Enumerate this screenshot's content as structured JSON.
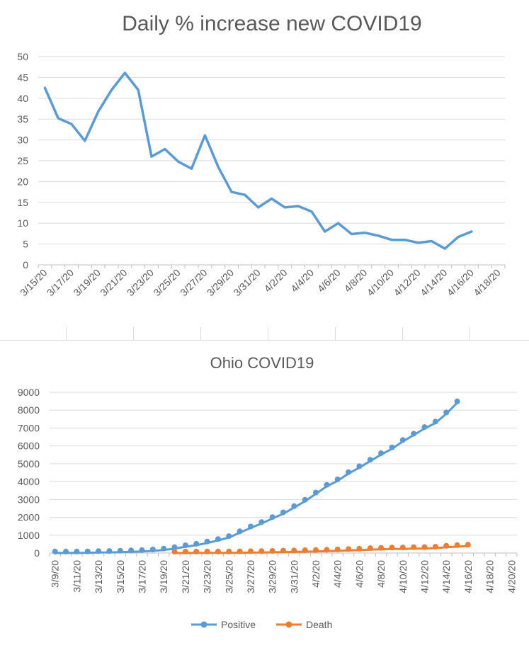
{
  "chart_data": [
    {
      "type": "line",
      "title": "Daily % increase new COVID19",
      "xlabel": "",
      "ylabel": "",
      "ylim": [
        0,
        50
      ],
      "yticks": [
        "0",
        "5",
        "10",
        "15",
        "20",
        "25",
        "30",
        "35",
        "40",
        "45",
        "50"
      ],
      "xticks": [
        "3/15/20",
        "3/17/20",
        "3/19/20",
        "3/21/20",
        "3/23/20",
        "3/25/20",
        "3/27/20",
        "3/29/20",
        "3/31/20",
        "4/2/20",
        "4/4/20",
        "4/6/20",
        "4/8/20",
        "4/10/20",
        "4/12/20",
        "4/14/20",
        "4/16/20",
        "4/18/20"
      ],
      "x_start": "3/15/20",
      "grid": true,
      "series": [
        {
          "color": "#5b9bd5",
          "x": [
            "3/15/20",
            "3/16/20",
            "3/17/20",
            "3/18/20",
            "3/19/20",
            "3/20/20",
            "3/21/20",
            "3/22/20",
            "3/23/20",
            "3/24/20",
            "3/25/20",
            "3/26/20",
            "3/27/20",
            "3/28/20",
            "3/29/20",
            "3/30/20",
            "3/31/20",
            "4/1/20",
            "4/2/20",
            "4/3/20",
            "4/4/20",
            "4/5/20",
            "4/6/20",
            "4/7/20",
            "4/8/20",
            "4/9/20",
            "4/10/20",
            "4/11/20",
            "4/12/20",
            "4/13/20",
            "4/14/20",
            "4/15/20",
            "4/16/20"
          ],
          "values": [
            42.5,
            35.2,
            33.8,
            29.8,
            36.8,
            42,
            46.1,
            42,
            26,
            27.8,
            24.8,
            23.1,
            31.1,
            23.5,
            17.5,
            16.8,
            13.8,
            15.9,
            13.8,
            14.1,
            12.8,
            8,
            10,
            7.4,
            7.7,
            7,
            6,
            6,
            5.3,
            5.7,
            3.9,
            6.7,
            8
          ]
        }
      ]
    },
    {
      "type": "line",
      "title": "Ohio COVID19",
      "xlabel": "",
      "ylabel": "",
      "ylim": [
        0,
        9000
      ],
      "yticks": [
        "0",
        "1000",
        "2000",
        "3000",
        "4000",
        "5000",
        "6000",
        "7000",
        "8000",
        "9000"
      ],
      "xticks": [
        "3/9/20",
        "3/11/20",
        "3/13/20",
        "3/15/20",
        "3/17/20",
        "3/19/20",
        "3/21/20",
        "3/23/20",
        "3/25/20",
        "3/27/20",
        "3/29/20",
        "3/31/20",
        "4/2/20",
        "4/4/20",
        "4/6/20",
        "4/8/20",
        "4/10/20",
        "4/12/20",
        "4/14/20",
        "4/16/20",
        "4/18/20",
        "4/20/20"
      ],
      "x_start": "3/9/20",
      "legend": "bottom",
      "grid": true,
      "series": [
        {
          "name": "Positive",
          "color": "#5b9bd5",
          "x_start": "3/9/20",
          "values": [
            3,
            5,
            5,
            13,
            26,
            37,
            50,
            67,
            88,
            119,
            169,
            247,
            351,
            442,
            564,
            704,
            867,
            1137,
            1406,
            1653,
            1933,
            2199,
            2547,
            2902,
            3312,
            3739,
            4043,
            4450,
            4782,
            5148,
            5512,
            5836,
            6250,
            6604,
            6975,
            7280,
            7794,
            8414
          ]
        },
        {
          "name": "Death",
          "color": "#ed7d31",
          "x_start": "3/20/20",
          "values": [
            1,
            3,
            3,
            6,
            8,
            10,
            15,
            22,
            29,
            39,
            55,
            65,
            81,
            91,
            102,
            119,
            142,
            162,
            193,
            211,
            227,
            231,
            248,
            254,
            274,
            324,
            361,
            389
          ]
        }
      ],
      "trendline_series": [
        "Positive",
        "Death"
      ]
    }
  ]
}
